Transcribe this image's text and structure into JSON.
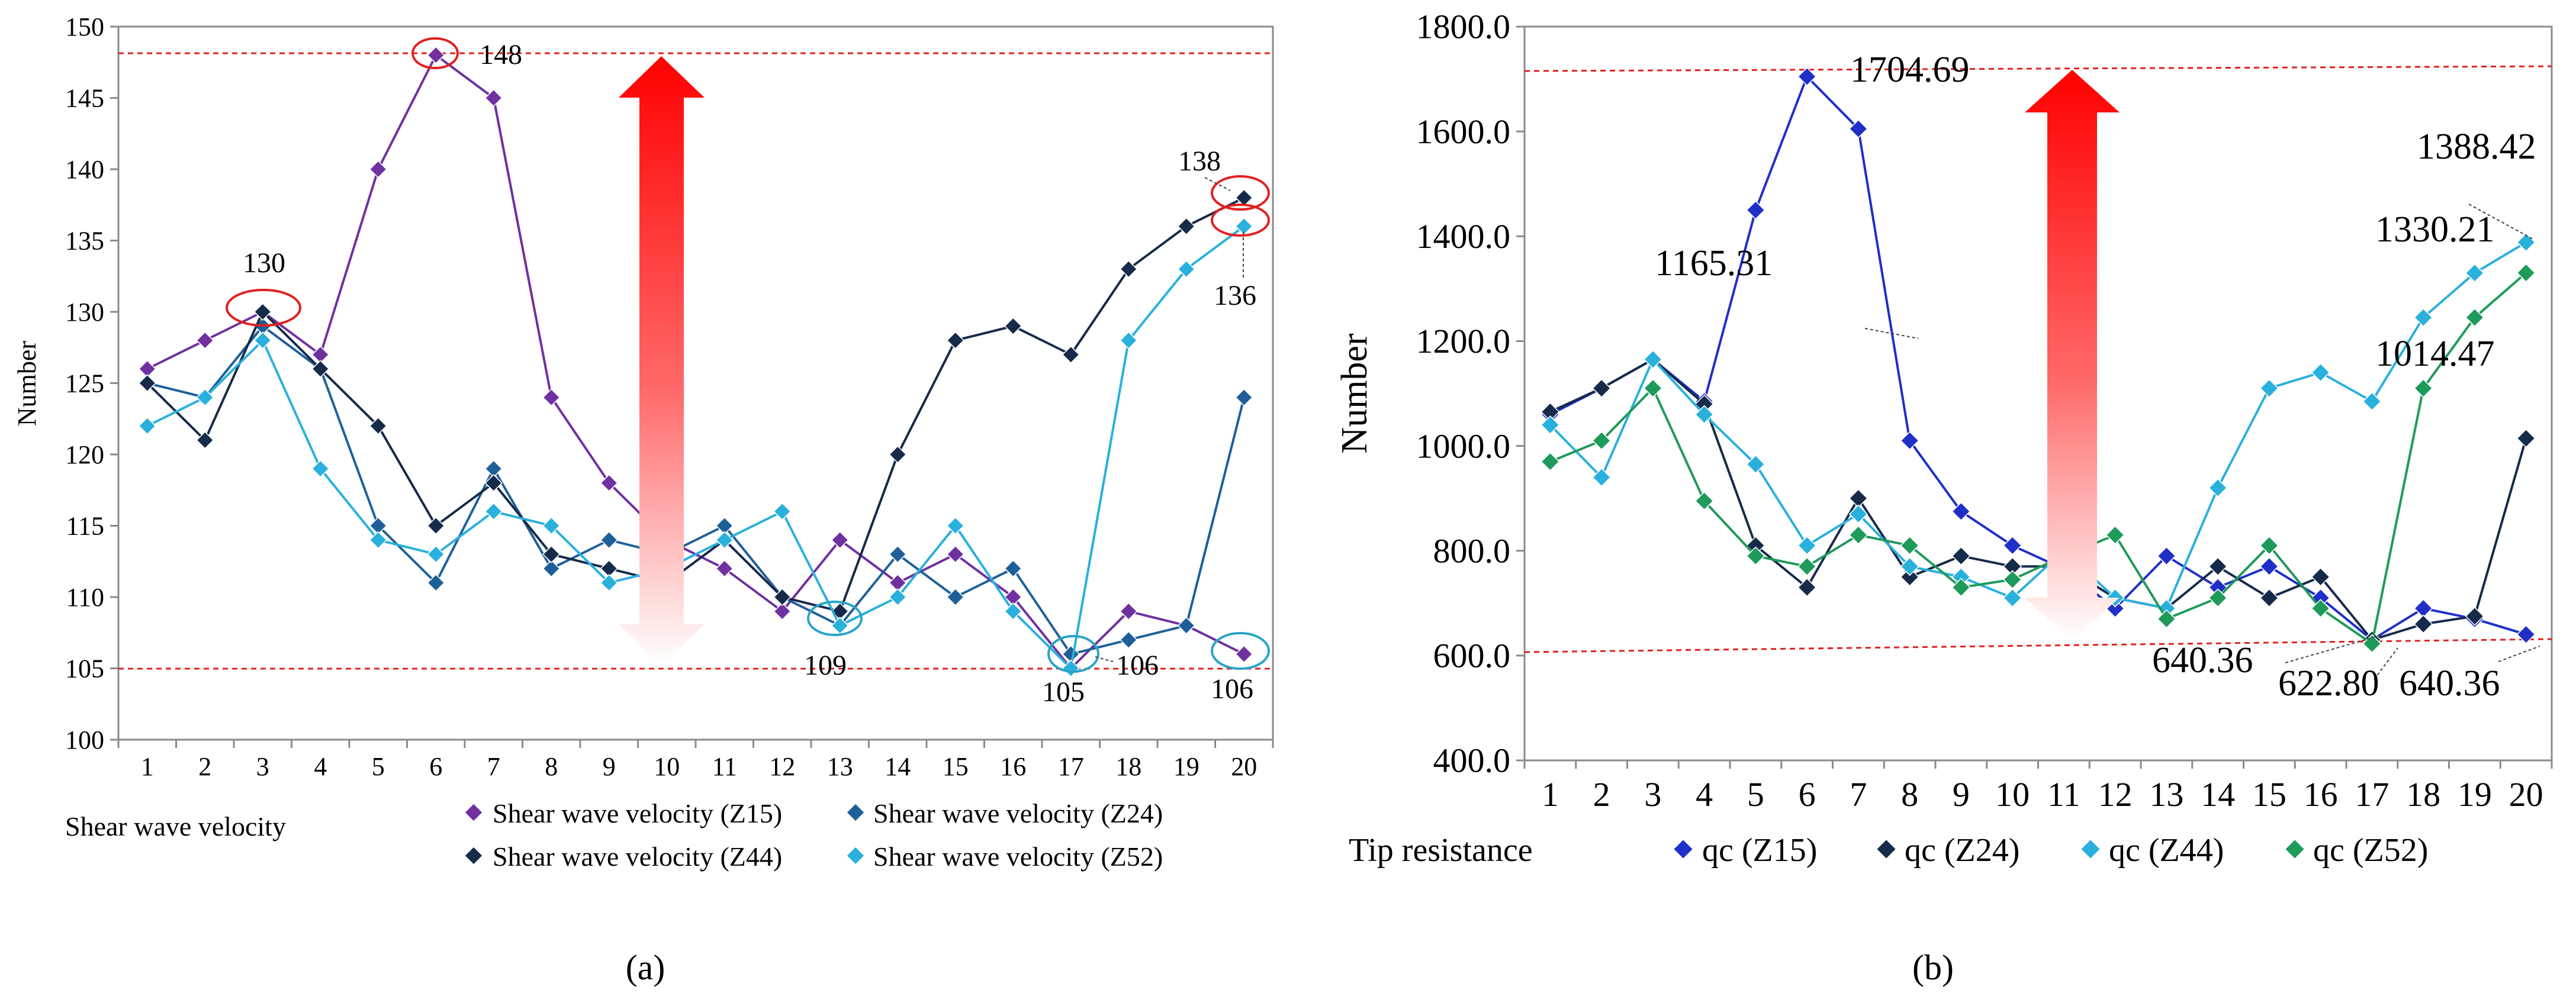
{
  "panel_labels": [
    "(a)",
    "(b)"
  ],
  "chart_data": [
    {
      "type": "line",
      "panel": "(a)",
      "title": "",
      "xlabel": "Shear wave velocity",
      "ylabel": "Number",
      "ylim": [
        100,
        150
      ],
      "yticks": [
        100,
        105,
        110,
        115,
        120,
        125,
        130,
        135,
        140,
        145,
        150
      ],
      "categories": [
        "1",
        "2",
        "3",
        "4",
        "5",
        "6",
        "7",
        "8",
        "9",
        "10",
        "11",
        "12",
        "13",
        "14",
        "15",
        "16",
        "17",
        "18",
        "19",
        "20"
      ],
      "series": [
        {
          "name": "Shear wave velocity (Z15)",
          "color": "#7030A0",
          "values": [
            126,
            128,
            130,
            127,
            140,
            148,
            145,
            124,
            118,
            114,
            112,
            109,
            114,
            111,
            113,
            110,
            105,
            109,
            108,
            106
          ]
        },
        {
          "name": "Shear wave velocity (Z24)",
          "color": "#1F5F99",
          "values": [
            125,
            124,
            129,
            126,
            115,
            111,
            119,
            112,
            114,
            113,
            115,
            110,
            108,
            113,
            110,
            112,
            106,
            107,
            108,
            124
          ]
        },
        {
          "name": "Shear wave velocity (Z44)",
          "color": "#162A4A",
          "values": [
            125,
            121,
            130,
            126,
            122,
            115,
            118,
            113,
            112,
            111,
            114,
            110,
            109,
            120,
            128,
            129,
            127,
            133,
            136,
            138
          ]
        },
        {
          "name": "Shear wave velocity (Z52)",
          "color": "#2AB0DC",
          "values": [
            122,
            124,
            128,
            119,
            114,
            113,
            116,
            115,
            111,
            112,
            114,
            116,
            108,
            110,
            115,
            109,
            105,
            128,
            133,
            136
          ]
        }
      ],
      "reference_lines": [
        148,
        105
      ],
      "annotations": [
        "148",
        "130",
        "138",
        "136",
        "109",
        "105",
        "106",
        "106"
      ]
    },
    {
      "type": "line",
      "panel": "(b)",
      "title": "",
      "xlabel": "Tip resistance",
      "ylabel": "Number",
      "ylim": [
        400,
        1800
      ],
      "yticks": [
        "400.0",
        "600.0",
        "800.0",
        "1000.0",
        "1200.0",
        "1400.0",
        "1600.0",
        "1800.0"
      ],
      "categories": [
        "1",
        "2",
        "3",
        "4",
        "5",
        "6",
        "7",
        "8",
        "9",
        "10",
        "11",
        "12",
        "13",
        "14",
        "15",
        "16",
        "17",
        "18",
        "19",
        "20"
      ],
      "series": [
        {
          "name": "qc (Z15)",
          "color": "#1F2FC8",
          "values": [
            1060,
            1110,
            1165.31,
            1085,
            1450,
            1704.69,
            1605,
            1010,
            875,
            810,
            765,
            690,
            790,
            730,
            770,
            710,
            630,
            690,
            670,
            640.36
          ]
        },
        {
          "name": "qc (Z24)",
          "color": "#162A4A",
          "values": [
            1065,
            1110,
            1165,
            1080,
            810,
            730,
            900,
            750,
            790,
            770,
            770,
            710,
            690,
            770,
            710,
            750,
            630,
            660,
            675,
            1014.47
          ]
        },
        {
          "name": "qc (Z44)",
          "color": "#2AB0DC",
          "values": [
            1040,
            940,
            1165,
            1060,
            965,
            810,
            870,
            770,
            750,
            710,
            800,
            710,
            690,
            920,
            1110,
            1140,
            1085,
            1245,
            1330,
            1388.42
          ]
        },
        {
          "name": "qc (Z52)",
          "color": "#1E9A5A",
          "values": [
            970,
            1010,
            1110,
            895,
            790,
            770,
            830,
            810,
            730,
            745,
            790,
            830,
            670,
            710,
            810,
            690,
            622.8,
            1110,
            1245,
            1330.21
          ]
        }
      ],
      "reference_lines": [
        1704.69,
        622.8
      ],
      "annotations": [
        "1704.69",
        "1165.31",
        "1388.42",
        "1330.21",
        "1014.47",
        "640.36",
        "622.80",
        "640.36"
      ]
    }
  ]
}
